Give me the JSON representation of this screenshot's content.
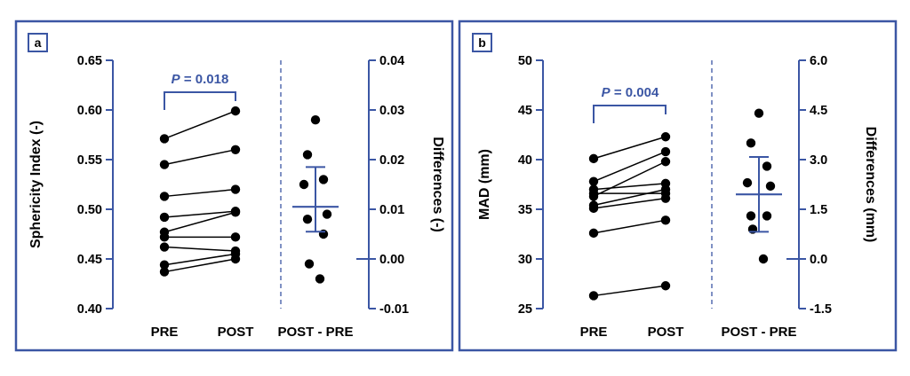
{
  "colors": {
    "frame": "#3b56a4",
    "data": "#000000",
    "accent": "#3b56a4",
    "background": "#ffffff"
  },
  "chart_data": [
    {
      "panel": "a",
      "type": "scatter",
      "subtype": "paired-dot-plot-with-difference-panel",
      "categories": [
        "PRE",
        "POST",
        "POST - PRE"
      ],
      "ylabel": "Sphericity Index (-)",
      "ylim": [
        0.4,
        0.65
      ],
      "yticks": [
        "0.40",
        "0.45",
        "0.50",
        "0.55",
        "0.60",
        "0.65"
      ],
      "y2label": "Differences (-)",
      "y2lim": [
        -0.01,
        0.04
      ],
      "y2ticks": [
        "-0.01",
        "0.00",
        "0.01",
        "0.02",
        "0.03",
        "0.04"
      ],
      "significance": {
        "p_label": "P",
        "p_value": "= 0.018"
      },
      "pairs": [
        [
          0.571,
          0.599
        ],
        [
          0.545,
          0.56
        ],
        [
          0.513,
          0.52
        ],
        [
          0.492,
          0.498
        ],
        [
          0.477,
          0.497
        ],
        [
          0.472,
          0.472
        ],
        [
          0.462,
          0.458
        ],
        [
          0.444,
          0.455
        ],
        [
          0.437,
          0.45
        ]
      ],
      "differences": [
        0.028,
        0.021,
        0.016,
        0.015,
        0.009,
        0.008,
        0.005,
        -0.001,
        -0.004
      ],
      "difference_mean": 0.0105,
      "difference_error": [
        0.0055,
        0.0185
      ]
    },
    {
      "panel": "b",
      "type": "scatter",
      "subtype": "paired-dot-plot-with-difference-panel",
      "categories": [
        "PRE",
        "POST",
        "POST - PRE"
      ],
      "ylabel": "MAD (mm)",
      "ylim": [
        25,
        50
      ],
      "yticks": [
        "25",
        "30",
        "35",
        "40",
        "45",
        "50"
      ],
      "y2label": "Differences (mm)",
      "y2lim": [
        -1.5,
        6.0
      ],
      "y2ticks": [
        "-1.5",
        "0.0",
        "1.5",
        "3.0",
        "4.5",
        "6.0"
      ],
      "significance": {
        "p_label": "P",
        "p_value": "= 0.004"
      },
      "pairs": [
        [
          40.1,
          42.3
        ],
        [
          37.8,
          40.8
        ],
        [
          37.0,
          37.6
        ],
        [
          36.6,
          36.6
        ],
        [
          36.3,
          39.8
        ],
        [
          35.4,
          37.0
        ],
        [
          35.1,
          36.1
        ],
        [
          32.6,
          33.9
        ],
        [
          26.3,
          27.3
        ]
      ],
      "differences": [
        4.4,
        3.5,
        2.8,
        2.3,
        2.2,
        1.3,
        1.3,
        0.9,
        0.0
      ],
      "difference_mean": 1.95,
      "difference_error": [
        0.82,
        3.08
      ]
    }
  ]
}
